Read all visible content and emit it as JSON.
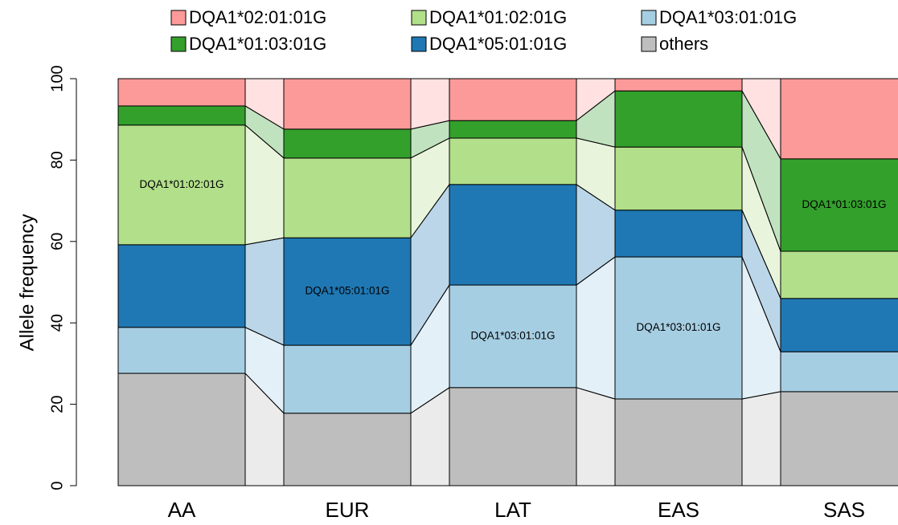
{
  "chart_data": {
    "type": "stacked_bar",
    "y_label": "Allele frequency",
    "categories": [
      "AA",
      "EUR",
      "LAT",
      "EAS",
      "SAS"
    ],
    "series": [
      {
        "name": "others",
        "color": "#bebebe",
        "values": [
          27.6,
          17.8,
          24.1,
          21.3,
          23.1
        ]
      },
      {
        "name": "DQA1*03:01:01G",
        "color": "#a6cee3",
        "values": [
          11.3,
          16.7,
          25.2,
          34.9,
          9.8
        ]
      },
      {
        "name": "DQA1*05:01:01G",
        "color": "#1f78b4",
        "values": [
          20.3,
          26.4,
          24.7,
          11.5,
          13.1
        ]
      },
      {
        "name": "DQA1*01:02:01G",
        "color": "#b2df8a",
        "values": [
          29.4,
          19.6,
          11.4,
          15.5,
          11.6
        ]
      },
      {
        "name": "DQA1*01:03:01G",
        "color": "#33a02c",
        "values": [
          4.7,
          7.1,
          4.3,
          13.8,
          22.7
        ]
      },
      {
        "name": "DQA1*02:01:01G",
        "color": "#fb9a99",
        "values": [
          6.7,
          12.4,
          10.3,
          3.0,
          19.7
        ]
      }
    ],
    "bar_labels": [
      "DQA1*01:02:01G",
      "DQA1*05:01:01G",
      "DQA1*03:01:01G",
      "DQA1*03:01:01G",
      "DQA1*01:03:01G"
    ],
    "ylim": [
      0,
      100
    ],
    "yticks": [
      0,
      20,
      40,
      60,
      80,
      100
    ]
  }
}
